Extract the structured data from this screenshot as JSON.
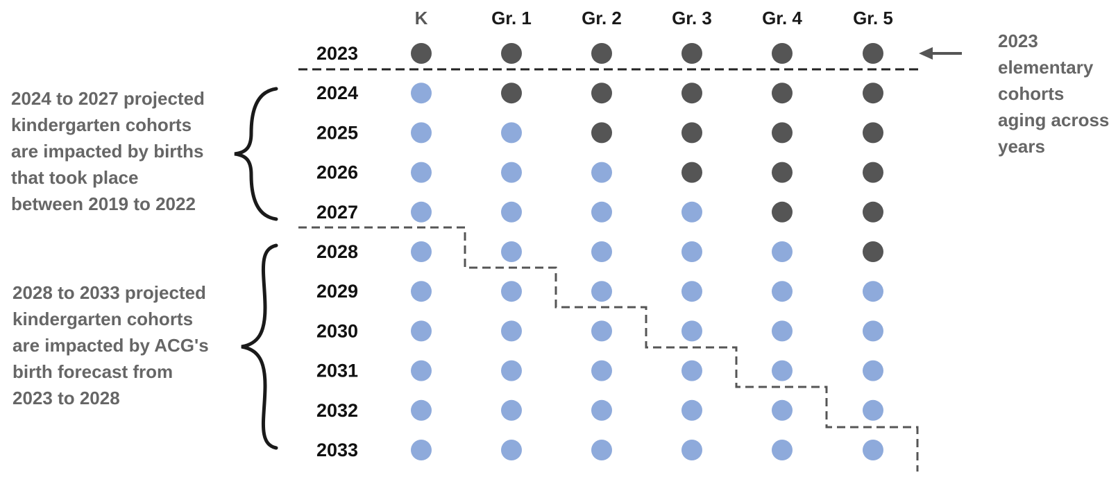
{
  "columns": [
    "K",
    "Gr. 1",
    "Gr. 2",
    "Gr. 3",
    "Gr. 4",
    "Gr. 5"
  ],
  "rows": [
    "2023",
    "2024",
    "2025",
    "2026",
    "2027",
    "2028",
    "2029",
    "2030",
    "2031",
    "2032",
    "2033"
  ],
  "dot_states": [
    [
      "dark",
      "dark",
      "dark",
      "dark",
      "dark",
      "dark"
    ],
    [
      "blue",
      "dark",
      "dark",
      "dark",
      "dark",
      "dark"
    ],
    [
      "blue",
      "blue",
      "dark",
      "dark",
      "dark",
      "dark"
    ],
    [
      "blue",
      "blue",
      "blue",
      "dark",
      "dark",
      "dark"
    ],
    [
      "blue",
      "blue",
      "blue",
      "blue",
      "dark",
      "dark"
    ],
    [
      "blue",
      "blue",
      "blue",
      "blue",
      "blue",
      "dark"
    ],
    [
      "blue",
      "blue",
      "blue",
      "blue",
      "blue",
      "blue"
    ],
    [
      "blue",
      "blue",
      "blue",
      "blue",
      "blue",
      "blue"
    ],
    [
      "blue",
      "blue",
      "blue",
      "blue",
      "blue",
      "blue"
    ],
    [
      "blue",
      "blue",
      "blue",
      "blue",
      "blue",
      "blue"
    ],
    [
      "blue",
      "blue",
      "blue",
      "blue",
      "blue",
      "blue"
    ]
  ],
  "annotations": {
    "left_top": "2024 to 2027 projected\nkindergarten cohorts\nare impacted by births\nthat took place\nbetween 2019 to 2022",
    "left_bottom": "2028 to 2033 projected\nkindergarten cohorts\nare impacted by ACG's\nbirth forecast from\n2023 to 2028",
    "right": "2023\nelementary\ncohorts\naging across\nyears"
  },
  "colors": {
    "dark_dot": "#555555",
    "blue_dot": "#8eaadb",
    "k_header": "#595959",
    "header_text": "#1a1a1a",
    "annotation_text": "#666666",
    "brace": "#1a1a1a",
    "dashed_line": "#555555",
    "arrow": "#555555"
  },
  "icons": {
    "left_top_brace": "curly-brace-icon",
    "left_bottom_brace": "curly-brace-icon",
    "right_arrow": "left-arrow-icon"
  }
}
